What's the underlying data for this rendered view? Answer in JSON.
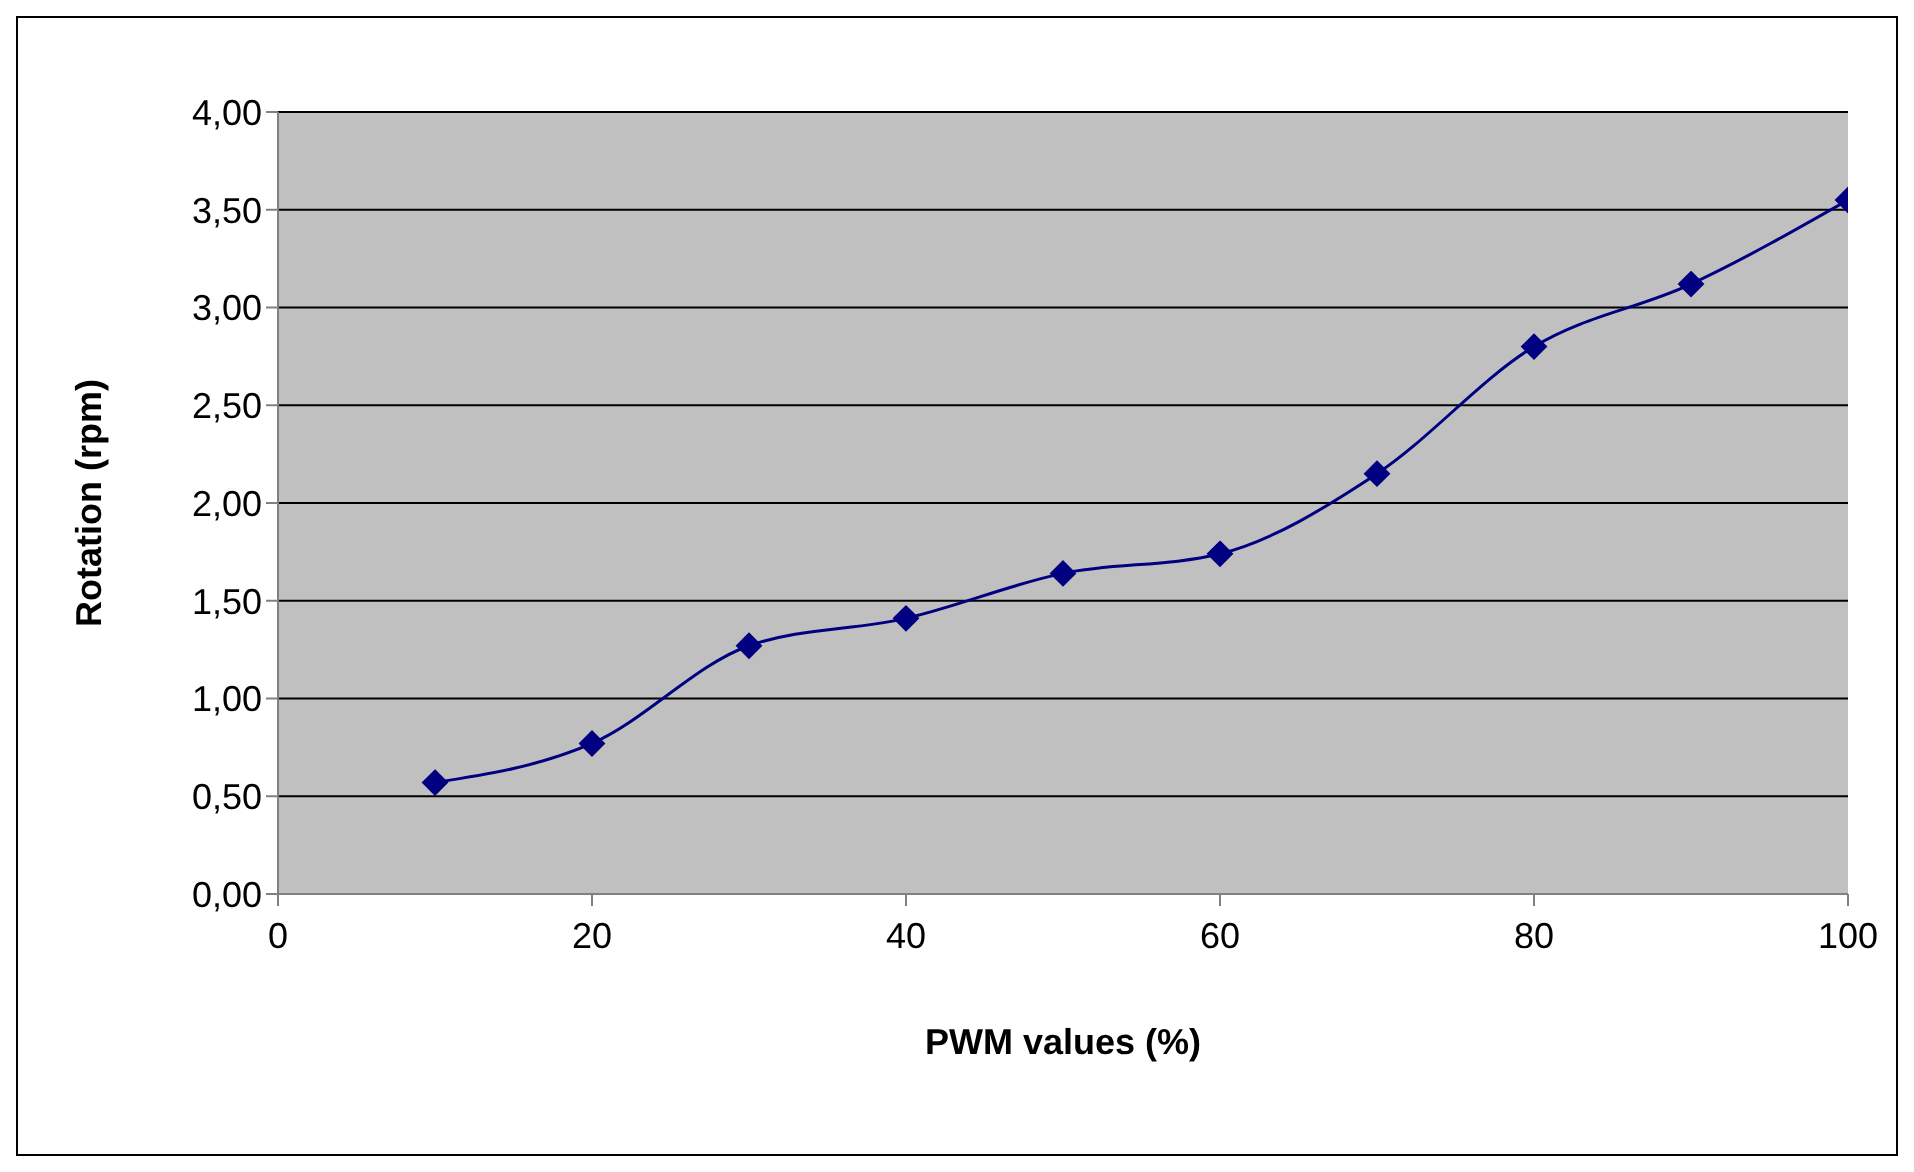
{
  "chart_data": {
    "type": "line",
    "xlabel": "PWM values (%)",
    "ylabel": "Rotation  (rpm)",
    "x": [
      10,
      20,
      30,
      40,
      50,
      60,
      70,
      80,
      90,
      100
    ],
    "series": [
      {
        "color": "#000080",
        "values": [
          0.57,
          0.77,
          1.27,
          1.41,
          1.64,
          1.74,
          2.15,
          2.8,
          3.12,
          3.55
        ]
      }
    ],
    "xlim": [
      0,
      100
    ],
    "xticks": [
      0,
      20,
      40,
      60,
      80,
      100
    ],
    "ylim": [
      0,
      4
    ],
    "yticks": [
      {
        "value": 0,
        "label": "0,00"
      },
      {
        "value": 0.5,
        "label": "0,50"
      },
      {
        "value": 1,
        "label": "1,00"
      },
      {
        "value": 1.5,
        "label": "1,50"
      },
      {
        "value": 2,
        "label": "2,00"
      },
      {
        "value": 2.5,
        "label": "2,50"
      },
      {
        "value": 3,
        "label": "3,00"
      },
      {
        "value": 3.5,
        "label": "3,50"
      },
      {
        "value": 4,
        "label": "4,00"
      }
    ],
    "grid": "y",
    "legend": false,
    "marker": "diamond",
    "line_style": "solid"
  }
}
